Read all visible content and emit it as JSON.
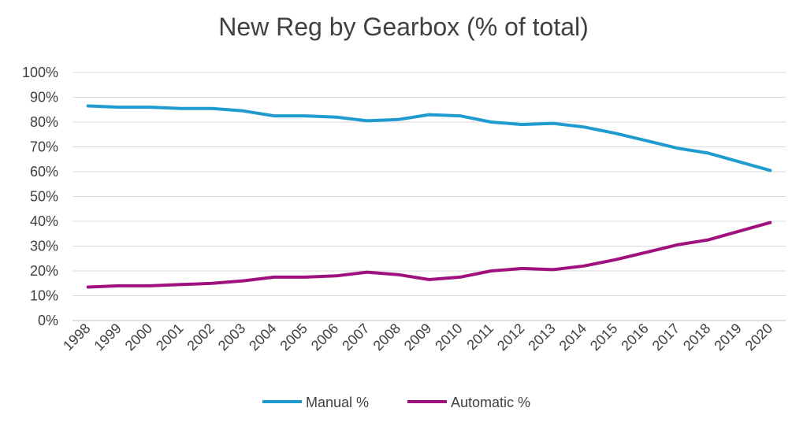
{
  "chart_data": {
    "type": "line",
    "title": "New Reg by Gearbox (% of total)",
    "xlabel": "",
    "ylabel": "",
    "x": [
      "1998",
      "1999",
      "2000",
      "2001",
      "2002",
      "2003",
      "2004",
      "2005",
      "2006",
      "2007",
      "2008",
      "2009",
      "2010",
      "2011",
      "2012",
      "2013",
      "2014",
      "2015",
      "2016",
      "2017",
      "2018",
      "2019",
      "2020"
    ],
    "ylim": [
      0,
      100
    ],
    "yticks": [
      0,
      10,
      20,
      30,
      40,
      50,
      60,
      70,
      80,
      90,
      100
    ],
    "ytick_labels": [
      "0%",
      "10%",
      "20%",
      "30%",
      "40%",
      "50%",
      "60%",
      "70%",
      "80%",
      "90%",
      "100%"
    ],
    "grid": true,
    "legend_position": "bottom",
    "series": [
      {
        "name": "Manual %",
        "color": "#1F9BCF",
        "values": [
          86.5,
          86,
          86,
          85.5,
          85.5,
          84.5,
          82.5,
          82.5,
          82,
          80.5,
          81,
          83,
          82.5,
          80,
          79,
          79.5,
          78,
          75.5,
          72.5,
          69.5,
          67.5,
          64,
          60.5
        ]
      },
      {
        "name": "Automatic %",
        "color": "#A0117E",
        "values": [
          13.5,
          14,
          14,
          14.5,
          15,
          16,
          17.5,
          17.5,
          18,
          19.5,
          18.5,
          16.5,
          17.5,
          20,
          21,
          20.5,
          22,
          24.5,
          27.5,
          30.5,
          32.5,
          36,
          39.5
        ]
      }
    ]
  }
}
